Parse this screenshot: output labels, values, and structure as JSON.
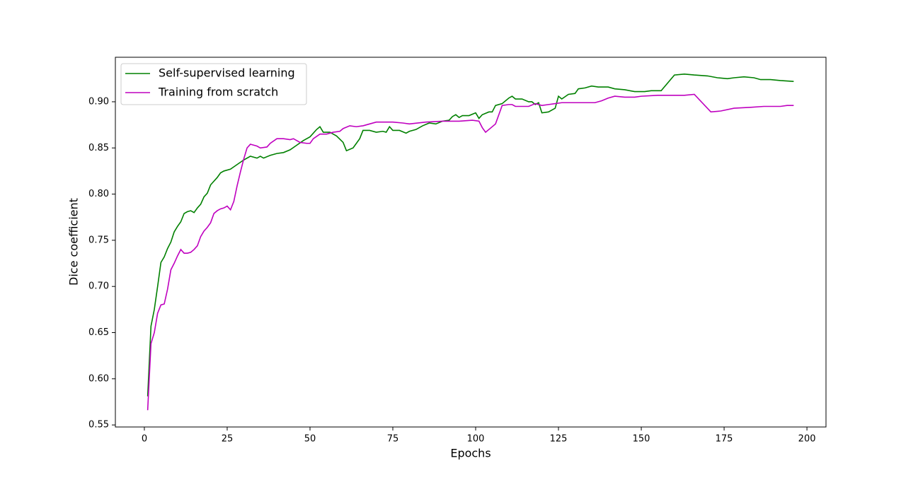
{
  "chart_data": {
    "type": "line",
    "x_label": "Epochs",
    "y_label": "Dice coefficient",
    "xlim": [
      -8.75,
      205.75
    ],
    "ylim": [
      0.5478,
      0.9482
    ],
    "xticks": [
      0,
      25,
      50,
      75,
      100,
      125,
      150,
      175,
      200
    ],
    "yticks": [
      {
        "value": 0.55,
        "label": "0.55"
      },
      {
        "value": 0.6,
        "label": "0.60"
      },
      {
        "value": 0.65,
        "label": "0.65"
      },
      {
        "value": 0.7,
        "label": "0.70"
      },
      {
        "value": 0.75,
        "label": "0.75"
      },
      {
        "value": 0.8,
        "label": "0.80"
      },
      {
        "value": 0.85,
        "label": "0.85"
      },
      {
        "value": 0.9,
        "label": "0.90"
      }
    ],
    "legend": "upper left",
    "grid": false,
    "series": [
      {
        "name": "Self-supervised learning",
        "color": "#008000",
        "x": [
          1,
          2,
          3,
          4,
          5,
          6,
          7,
          8,
          9,
          10,
          11,
          12,
          13,
          14,
          15,
          16,
          17,
          18,
          19,
          20,
          22,
          23,
          24,
          26,
          28,
          30,
          32,
          34,
          35,
          36,
          38,
          40,
          42,
          44,
          46,
          48,
          50,
          52,
          53,
          54,
          56,
          58,
          60,
          61,
          63,
          64,
          65,
          66,
          68,
          70,
          72,
          73,
          74,
          75,
          77,
          79,
          80,
          82,
          84,
          86,
          88,
          90,
          92,
          93,
          94,
          95,
          96,
          98,
          100,
          101,
          102,
          104,
          105,
          106,
          108,
          110,
          111,
          112,
          114,
          116,
          117,
          118,
          119,
          120,
          122,
          124,
          125,
          126,
          128,
          130,
          131,
          133,
          135,
          137,
          140,
          142,
          145,
          148,
          151,
          153,
          156,
          160,
          163,
          166,
          170,
          173,
          176,
          178,
          181,
          184,
          186,
          189,
          192,
          196
        ],
        "values": [
          0.581,
          0.657,
          0.675,
          0.7,
          0.726,
          0.732,
          0.741,
          0.748,
          0.759,
          0.765,
          0.77,
          0.779,
          0.781,
          0.782,
          0.78,
          0.785,
          0.789,
          0.797,
          0.801,
          0.81,
          0.818,
          0.823,
          0.825,
          0.827,
          0.832,
          0.837,
          0.841,
          0.839,
          0.841,
          0.839,
          0.842,
          0.844,
          0.845,
          0.848,
          0.853,
          0.858,
          0.862,
          0.87,
          0.873,
          0.867,
          0.867,
          0.863,
          0.856,
          0.847,
          0.85,
          0.855,
          0.86,
          0.869,
          0.869,
          0.867,
          0.868,
          0.867,
          0.873,
          0.869,
          0.869,
          0.866,
          0.868,
          0.87,
          0.874,
          0.877,
          0.876,
          0.879,
          0.88,
          0.884,
          0.886,
          0.883,
          0.885,
          0.885,
          0.888,
          0.882,
          0.886,
          0.889,
          0.889,
          0.896,
          0.898,
          0.904,
          0.906,
          0.903,
          0.903,
          0.9,
          0.9,
          0.897,
          0.899,
          0.888,
          0.889,
          0.893,
          0.906,
          0.903,
          0.908,
          0.909,
          0.914,
          0.915,
          0.917,
          0.916,
          0.916,
          0.914,
          0.913,
          0.911,
          0.911,
          0.912,
          0.912,
          0.929,
          0.93,
          0.929,
          0.928,
          0.926,
          0.925,
          0.926,
          0.927,
          0.926,
          0.924,
          0.924,
          0.923,
          0.922
        ]
      },
      {
        "name": "Training from scratch",
        "color": "#bf00bf",
        "x": [
          1,
          2,
          3,
          4,
          5,
          6,
          7,
          8,
          9,
          10,
          11,
          12,
          13,
          14,
          15,
          16,
          17,
          18,
          19,
          20,
          21,
          22,
          23,
          24,
          25,
          26,
          27,
          28,
          29,
          30,
          31,
          32,
          34,
          35,
          37,
          38,
          40,
          42,
          44,
          45,
          47,
          49,
          50,
          51,
          53,
          55,
          57,
          59,
          60,
          62,
          64,
          66,
          68,
          70,
          75,
          78,
          80,
          85,
          90,
          95,
          99,
          101,
          102,
          103,
          106,
          108,
          110,
          111,
          112,
          116,
          118,
          120,
          122,
          124,
          126,
          130,
          136,
          138,
          140,
          142,
          145,
          148,
          150,
          155,
          160,
          163,
          166,
          171,
          174,
          178,
          183,
          187,
          189,
          192,
          194,
          196
        ],
        "values": [
          0.566,
          0.638,
          0.65,
          0.671,
          0.68,
          0.681,
          0.697,
          0.718,
          0.725,
          0.733,
          0.74,
          0.736,
          0.736,
          0.737,
          0.74,
          0.744,
          0.754,
          0.76,
          0.764,
          0.769,
          0.779,
          0.782,
          0.784,
          0.785,
          0.787,
          0.783,
          0.792,
          0.809,
          0.824,
          0.838,
          0.85,
          0.854,
          0.852,
          0.85,
          0.851,
          0.855,
          0.86,
          0.86,
          0.859,
          0.86,
          0.856,
          0.855,
          0.855,
          0.86,
          0.865,
          0.865,
          0.867,
          0.868,
          0.871,
          0.874,
          0.873,
          0.874,
          0.876,
          0.878,
          0.878,
          0.877,
          0.876,
          0.878,
          0.879,
          0.879,
          0.88,
          0.879,
          0.872,
          0.867,
          0.876,
          0.896,
          0.897,
          0.897,
          0.895,
          0.895,
          0.898,
          0.896,
          0.897,
          0.898,
          0.899,
          0.899,
          0.899,
          0.901,
          0.904,
          0.906,
          0.905,
          0.905,
          0.906,
          0.907,
          0.907,
          0.907,
          0.908,
          0.889,
          0.89,
          0.893,
          0.894,
          0.895,
          0.895,
          0.895,
          0.896,
          0.896
        ]
      }
    ]
  }
}
